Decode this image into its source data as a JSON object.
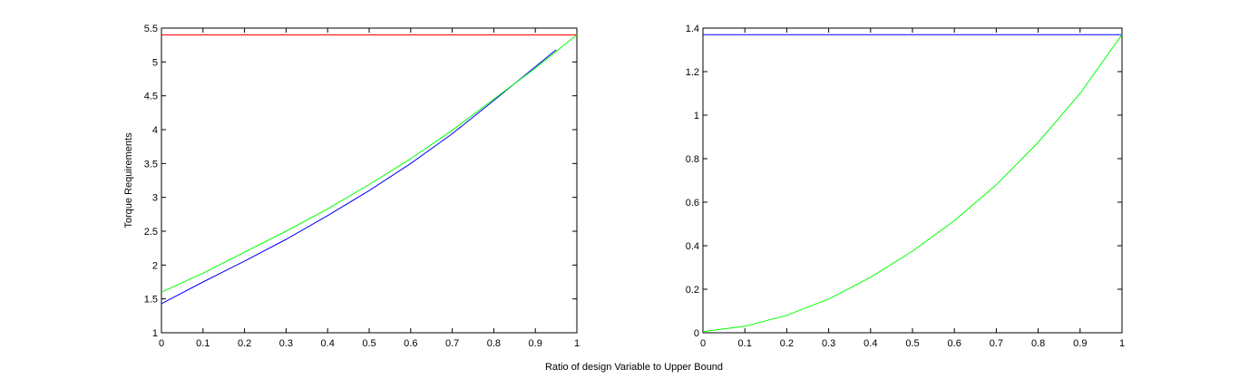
{
  "figure": {
    "xlabel": "Ratio of design Variable to Upper Bound"
  },
  "chart_data": [
    {
      "type": "line",
      "title": "",
      "xlabel": "",
      "ylabel": "Torque Requirements",
      "xlim": [
        0,
        1
      ],
      "ylim": [
        1,
        5.5
      ],
      "xticks": [
        0,
        0.1,
        0.2,
        0.3,
        0.4,
        0.5,
        0.6,
        0.7,
        0.8,
        0.9,
        1
      ],
      "yticks": [
        1,
        1.5,
        2,
        2.5,
        3,
        3.5,
        4,
        4.5,
        5,
        5.5
      ],
      "xtick_labels": [
        "0",
        "0.1",
        "0.2",
        "0.3",
        "0.4",
        "0.5",
        "0.6",
        "0.7",
        "0.8",
        "0.9",
        "1"
      ],
      "ytick_labels": [
        "1",
        "1.5",
        "2",
        "2.5",
        "3",
        "3.5",
        "4",
        "4.5",
        "5",
        "5.5"
      ],
      "grid": false,
      "series": [
        {
          "color": "#ff0000",
          "x": [
            0,
            1
          ],
          "y": [
            5.4,
            5.4
          ]
        },
        {
          "color": "#0000ff",
          "x": [
            0,
            0.1,
            0.2,
            0.3,
            0.4,
            0.5,
            0.6,
            0.7,
            0.8,
            0.9,
            0.95
          ],
          "y": [
            1.43,
            1.75,
            2.06,
            2.38,
            2.73,
            3.1,
            3.5,
            3.94,
            4.43,
            4.93,
            5.18
          ]
        },
        {
          "color": "#00ff00",
          "x": [
            0,
            0.1,
            0.2,
            0.3,
            0.4,
            0.5,
            0.6,
            0.7,
            0.8,
            0.9,
            1
          ],
          "y": [
            1.6,
            1.88,
            2.19,
            2.5,
            2.83,
            3.19,
            3.57,
            3.99,
            4.45,
            4.91,
            5.4
          ]
        }
      ]
    },
    {
      "type": "line",
      "title": "",
      "xlabel": "",
      "ylabel": "",
      "xlim": [
        0,
        1
      ],
      "ylim": [
        0,
        1.4
      ],
      "xticks": [
        0,
        0.1,
        0.2,
        0.3,
        0.4,
        0.5,
        0.6,
        0.7,
        0.8,
        0.9,
        1
      ],
      "yticks": [
        0,
        0.2,
        0.4,
        0.6,
        0.8,
        1,
        1.2,
        1.4
      ],
      "xtick_labels": [
        "0",
        "0.1",
        "0.2",
        "0.3",
        "0.4",
        "0.5",
        "0.6",
        "0.7",
        "0.8",
        "0.9",
        "1"
      ],
      "ytick_labels": [
        "0",
        "0.2",
        "0.4",
        "0.6",
        "0.8",
        "1",
        "1.2",
        "1.4"
      ],
      "grid": false,
      "series": [
        {
          "color": "#0000ff",
          "x": [
            0,
            1
          ],
          "y": [
            1.37,
            1.37
          ]
        },
        {
          "color": "#00ff00",
          "x": [
            0,
            0.1,
            0.2,
            0.3,
            0.4,
            0.5,
            0.6,
            0.7,
            0.8,
            0.9,
            1
          ],
          "y": [
            0.005,
            0.03,
            0.08,
            0.155,
            0.255,
            0.375,
            0.515,
            0.68,
            0.875,
            1.1,
            1.37
          ]
        }
      ]
    }
  ]
}
